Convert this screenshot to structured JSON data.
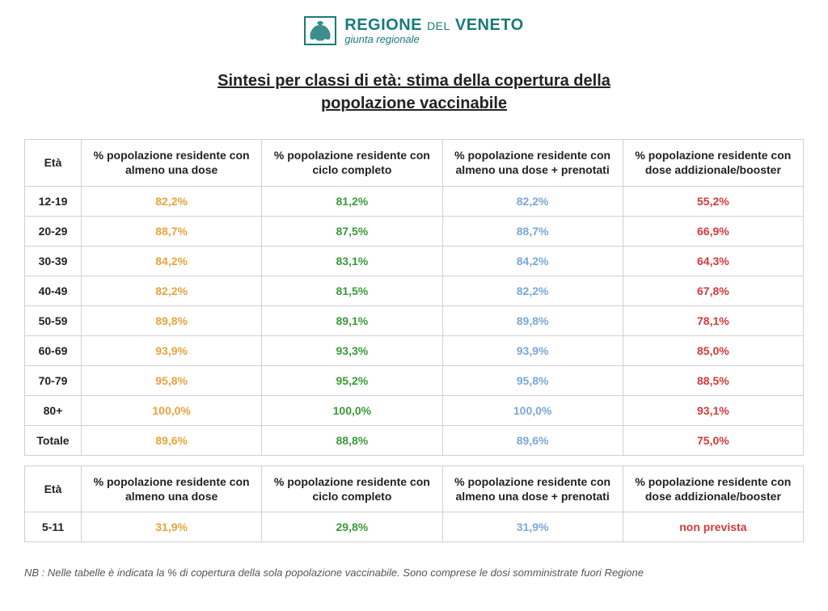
{
  "header": {
    "org_main": "REGIONE",
    "org_small": "DEL",
    "org_end": "VENETO",
    "org_sub": "giunta regionale",
    "logo_border_color": "#1a7a7a"
  },
  "title_line1": "Sintesi per classi di età: stima della copertura della",
  "title_line2": "popolazione vaccinabile",
  "columns": {
    "age": "Età",
    "c1": "% popolazione residente con almeno una dose",
    "c2": "% popolazione residente con ciclo completo",
    "c3": "% popolazione residente con almeno una dose + prenotati",
    "c4": "% popolazione residente con dose addizionale/booster"
  },
  "colors": {
    "c1": "#e8a33d",
    "c2": "#3a9a3a",
    "c3": "#7aa8d8",
    "c4": "#d43a3a"
  },
  "table1_rows": [
    {
      "age": "12-19",
      "c1": "82,2%",
      "c2": "81,2%",
      "c3": "82,2%",
      "c4": "55,2%"
    },
    {
      "age": "20-29",
      "c1": "88,7%",
      "c2": "87,5%",
      "c3": "88,7%",
      "c4": "66,9%"
    },
    {
      "age": "30-39",
      "c1": "84,2%",
      "c2": "83,1%",
      "c3": "84,2%",
      "c4": "64,3%"
    },
    {
      "age": "40-49",
      "c1": "82,2%",
      "c2": "81,5%",
      "c3": "82,2%",
      "c4": "67,8%"
    },
    {
      "age": "50-59",
      "c1": "89,8%",
      "c2": "89,1%",
      "c3": "89,8%",
      "c4": "78,1%"
    },
    {
      "age": "60-69",
      "c1": "93,9%",
      "c2": "93,3%",
      "c3": "93,9%",
      "c4": "85,0%"
    },
    {
      "age": "70-79",
      "c1": "95,8%",
      "c2": "95,2%",
      "c3": "95,8%",
      "c4": "88,5%"
    },
    {
      "age": "80+",
      "c1": "100,0%",
      "c2": "100,0%",
      "c3": "100,0%",
      "c4": "93,1%"
    },
    {
      "age": "Totale",
      "c1": "89,6%",
      "c2": "88,8%",
      "c3": "89,6%",
      "c4": "75,0%"
    }
  ],
  "table2_rows": [
    {
      "age": "5-11",
      "c1": "31,9%",
      "c2": "29,8%",
      "c3": "31,9%",
      "c4": "non prevista"
    }
  ],
  "footnote": "NB : Nelle tabelle è indicata la % di copertura della sola popolazione vaccinabile. Sono comprese le dosi somministrate fuori Regione"
}
